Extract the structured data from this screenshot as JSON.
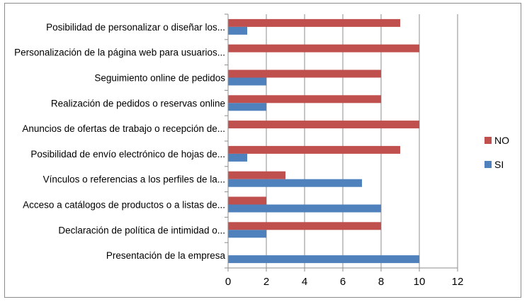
{
  "chart_data": {
    "type": "bar",
    "orientation": "horizontal",
    "title": "",
    "xlabel": "",
    "ylabel": "",
    "xlim": [
      0,
      12
    ],
    "xticks": [
      0,
      2,
      4,
      6,
      8,
      10,
      12
    ],
    "grid": "vertical",
    "legend_position": "right",
    "categories": [
      "Presentación de la empresa",
      "Declaración de política de intimidad o...",
      "Acceso a catálogos de productos o a listas de...",
      "Vínculos o referencias a los perfiles de la...",
      "Posibilidad de envío electrónico de hojas de...",
      "Anuncios de ofertas de trabajo o recepción de...",
      "Realización de pedidos o reservas online",
      "Seguimiento online de pedidos",
      "Personalización de la página web para usuarios...",
      "Posibilidad de personalizar o diseñar los..."
    ],
    "series": [
      {
        "name": "SI",
        "color": "#4f81bd",
        "values": [
          10,
          2,
          8,
          7,
          1,
          0,
          2,
          2,
          0,
          1
        ]
      },
      {
        "name": "NO",
        "color": "#c0504d",
        "values": [
          0,
          8,
          2,
          3,
          9,
          10,
          8,
          8,
          10,
          9
        ]
      }
    ],
    "legend": [
      "NO",
      "SI"
    ]
  }
}
